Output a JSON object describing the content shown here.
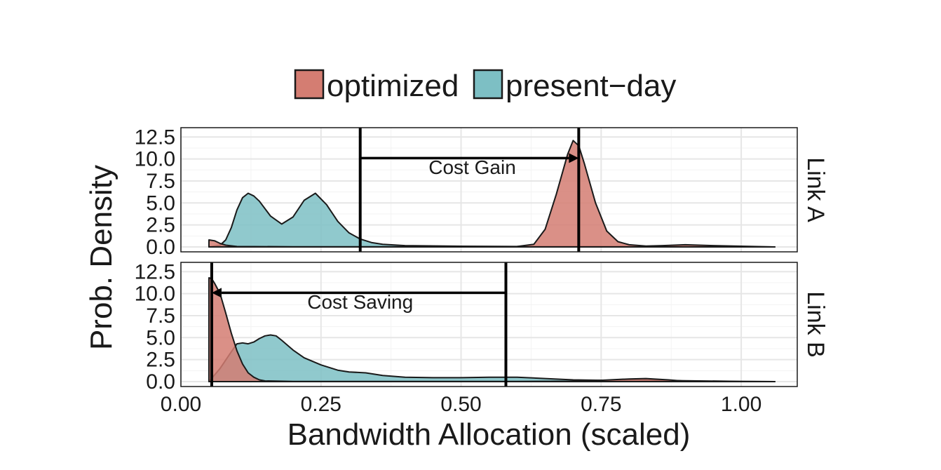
{
  "chart_data": {
    "type": "area",
    "xlabel": "Bandwidth Allocation (scaled)",
    "ylabel": "Prob. Density",
    "xlim": [
      0.0,
      1.1
    ],
    "ylim": [
      0,
      13
    ],
    "x_ticks": [
      0.0,
      0.25,
      0.5,
      0.75,
      1.0
    ],
    "x_tick_labels": [
      "0.00",
      "0.25",
      "0.50",
      "0.75",
      "1.00"
    ],
    "y_ticks": [
      0,
      2.5,
      5,
      7.5,
      10,
      12.5
    ],
    "y_tick_labels": [
      "0.0",
      "2.5",
      "5.0",
      "7.5",
      "10.0",
      "12.5"
    ],
    "grid": true,
    "legend": {
      "position": "top",
      "items": [
        {
          "label": "optimized",
          "color": "#d47d72"
        },
        {
          "label": "present−day",
          "color": "#7dbfc4"
        }
      ]
    },
    "panels": [
      {
        "label": "Link A",
        "series": [
          {
            "name": "present−day",
            "color": "#7dbfc4",
            "x": [
              0.05,
              0.07,
              0.08,
              0.09,
              0.1,
              0.11,
              0.12,
              0.13,
              0.14,
              0.16,
              0.18,
              0.2,
              0.22,
              0.24,
              0.26,
              0.28,
              0.3,
              0.32,
              0.34,
              0.36,
              0.4,
              0.5,
              0.6,
              0.7,
              0.8,
              1.06
            ],
            "y": [
              0.0,
              0.2,
              0.8,
              2.2,
              4.2,
              5.6,
              6.1,
              5.8,
              5.2,
              3.5,
              2.6,
              3.4,
              5.3,
              6.1,
              4.8,
              2.9,
              1.6,
              0.9,
              0.5,
              0.3,
              0.15,
              0.08,
              0.05,
              0.05,
              0.05,
              0.0
            ]
          },
          {
            "name": "optimized",
            "color": "#d47d72",
            "x": [
              0.05,
              0.06,
              0.07,
              0.08,
              0.1,
              0.2,
              0.4,
              0.6,
              0.63,
              0.65,
              0.67,
              0.69,
              0.7,
              0.71,
              0.72,
              0.74,
              0.76,
              0.78,
              0.8,
              0.83,
              0.86,
              0.9,
              0.95,
              1.06
            ],
            "y": [
              0.8,
              0.7,
              0.4,
              0.2,
              0.05,
              0.02,
              0.02,
              0.05,
              0.3,
              2.0,
              6.0,
              10.5,
              12.1,
              11.5,
              9.5,
              5.0,
              1.8,
              0.6,
              0.25,
              0.1,
              0.15,
              0.25,
              0.15,
              0.0
            ]
          }
        ],
        "vlines": [
          0.32,
          0.71
        ],
        "arrow": {
          "from": 0.32,
          "to": 0.71,
          "y": 10.1
        },
        "annotation": {
          "text": "Cost Gain",
          "x": 0.52,
          "y": 8.3
        }
      },
      {
        "label": "Link B",
        "series": [
          {
            "name": "present−day",
            "color": "#7dbfc4",
            "x": [
              0.05,
              0.07,
              0.09,
              0.1,
              0.11,
              0.12,
              0.13,
              0.14,
              0.15,
              0.16,
              0.17,
              0.18,
              0.2,
              0.22,
              0.25,
              0.28,
              0.3,
              0.33,
              0.36,
              0.4,
              0.45,
              0.5,
              0.55,
              0.6,
              0.65,
              0.7,
              0.75,
              0.8,
              0.85,
              0.9,
              1.0,
              1.06
            ],
            "y": [
              0.0,
              1.5,
              3.4,
              4.3,
              4.4,
              4.3,
              4.5,
              4.9,
              5.2,
              5.3,
              5.2,
              4.7,
              3.6,
              2.7,
              1.9,
              1.3,
              1.1,
              1.0,
              0.7,
              0.5,
              0.45,
              0.45,
              0.5,
              0.5,
              0.35,
              0.2,
              0.15,
              0.2,
              0.15,
              0.1,
              0.02,
              0.0
            ]
          },
          {
            "name": "optimized",
            "color": "#d47d72",
            "x": [
              0.05,
              0.055,
              0.06,
              0.07,
              0.08,
              0.09,
              0.1,
              0.11,
              0.12,
              0.13,
              0.14,
              0.15,
              0.2,
              0.4,
              0.6,
              0.7,
              0.75,
              0.8,
              0.83,
              0.87,
              0.9,
              1.06
            ],
            "y": [
              11.8,
              11.7,
              11.2,
              10.0,
              7.8,
              5.5,
              3.5,
              2.0,
              1.0,
              0.5,
              0.2,
              0.08,
              0.02,
              0.02,
              0.02,
              0.05,
              0.15,
              0.3,
              0.35,
              0.2,
              0.05,
              0.0
            ]
          }
        ],
        "vlines": [
          0.055,
          0.58
        ],
        "arrow": {
          "from": 0.58,
          "to": 0.055,
          "y": 10.1
        },
        "annotation": {
          "text": "Cost Saving",
          "x": 0.32,
          "y": 8.3
        }
      }
    ]
  }
}
